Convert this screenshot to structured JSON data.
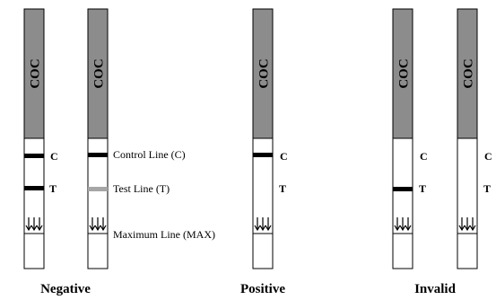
{
  "strip_label": "COC",
  "marks": {
    "control": "C",
    "test": "T"
  },
  "annotations": {
    "control": "Control Line (C)",
    "test": "Test Line (T)",
    "max": "Maximum Line (MAX)"
  },
  "captions": {
    "negative": "Negative",
    "positive": "Positive",
    "invalid": "Invalid"
  },
  "colors": {
    "pad": "#8c8c8c",
    "line": "#000000",
    "faint_line": "#a6a6a6",
    "frame": "#000000"
  }
}
